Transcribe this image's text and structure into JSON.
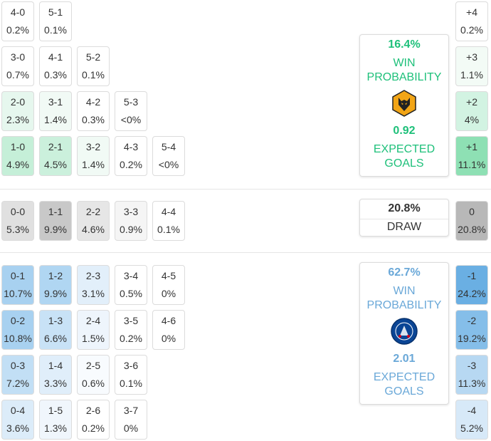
{
  "home_rows": [
    [
      {
        "score": "4-0",
        "prob": "0.2%",
        "bg": "#ffffff"
      },
      {
        "score": "5-1",
        "prob": "0.1%",
        "bg": "#ffffff"
      }
    ],
    [
      {
        "score": "3-0",
        "prob": "0.7%",
        "bg": "#ffffff"
      },
      {
        "score": "4-1",
        "prob": "0.3%",
        "bg": "#ffffff"
      },
      {
        "score": "5-2",
        "prob": "0.1%",
        "bg": "#ffffff"
      }
    ],
    [
      {
        "score": "2-0",
        "prob": "2.3%",
        "bg": "#e6f7ee"
      },
      {
        "score": "3-1",
        "prob": "1.4%",
        "bg": "#f1faf5"
      },
      {
        "score": "4-2",
        "prob": "0.3%",
        "bg": "#ffffff"
      },
      {
        "score": "5-3",
        "prob": "<0%",
        "bg": "#ffffff"
      }
    ],
    [
      {
        "score": "1-0",
        "prob": "4.9%",
        "bg": "#c5efd8"
      },
      {
        "score": "2-1",
        "prob": "4.5%",
        "bg": "#cbf0dc"
      },
      {
        "score": "3-2",
        "prob": "1.4%",
        "bg": "#f1faf5"
      },
      {
        "score": "4-3",
        "prob": "0.2%",
        "bg": "#ffffff"
      },
      {
        "score": "5-4",
        "prob": "<0%",
        "bg": "#ffffff"
      }
    ]
  ],
  "draw_row": [
    {
      "score": "0-0",
      "prob": "5.3%",
      "bg": "#e0e0e0"
    },
    {
      "score": "1-1",
      "prob": "9.9%",
      "bg": "#c8c8c8"
    },
    {
      "score": "2-2",
      "prob": "4.6%",
      "bg": "#e6e6e6"
    },
    {
      "score": "3-3",
      "prob": "0.9%",
      "bg": "#f5f5f5"
    },
    {
      "score": "4-4",
      "prob": "0.1%",
      "bg": "#ffffff"
    }
  ],
  "away_rows": [
    [
      {
        "score": "0-1",
        "prob": "10.7%",
        "bg": "#a8d1f0"
      },
      {
        "score": "1-2",
        "prob": "9.9%",
        "bg": "#b0d6f2"
      },
      {
        "score": "2-3",
        "prob": "3.1%",
        "bg": "#e2effa"
      },
      {
        "score": "3-4",
        "prob": "0.5%",
        "bg": "#ffffff"
      },
      {
        "score": "4-5",
        "prob": "0%",
        "bg": "#ffffff"
      }
    ],
    [
      {
        "score": "0-2",
        "prob": "10.8%",
        "bg": "#a8d1f0"
      },
      {
        "score": "1-3",
        "prob": "6.6%",
        "bg": "#c8e2f6"
      },
      {
        "score": "2-4",
        "prob": "1.5%",
        "bg": "#eef5fc"
      },
      {
        "score": "3-5",
        "prob": "0.2%",
        "bg": "#ffffff"
      },
      {
        "score": "4-6",
        "prob": "0%",
        "bg": "#ffffff"
      }
    ],
    [
      {
        "score": "0-3",
        "prob": "7.2%",
        "bg": "#c2dff5"
      },
      {
        "score": "1-4",
        "prob": "3.3%",
        "bg": "#e0eefa"
      },
      {
        "score": "2-5",
        "prob": "0.6%",
        "bg": "#f8fbfe"
      },
      {
        "score": "3-6",
        "prob": "0.1%",
        "bg": "#ffffff"
      }
    ],
    [
      {
        "score": "0-4",
        "prob": "3.6%",
        "bg": "#dcecf9"
      },
      {
        "score": "1-5",
        "prob": "1.3%",
        "bg": "#f0f6fc"
      },
      {
        "score": "2-6",
        "prob": "0.2%",
        "bg": "#ffffff"
      },
      {
        "score": "3-7",
        "prob": "0%",
        "bg": "#ffffff"
      }
    ]
  ],
  "margins": [
    {
      "label": "+4",
      "prob": "0.2%",
      "bg": "#ffffff"
    },
    {
      "label": "+3",
      "prob": "1.1%",
      "bg": "#f3fbf6"
    },
    {
      "label": "+2",
      "prob": "4%",
      "bg": "#d2f3e2"
    },
    {
      "label": "+1",
      "prob": "11.1%",
      "bg": "#8ee0b4"
    },
    {
      "label": "0",
      "prob": "20.8%",
      "bg": "#b8b8b8"
    },
    {
      "label": "-1",
      "prob": "24.2%",
      "bg": "#6aafe3"
    },
    {
      "label": "-2",
      "prob": "19.2%",
      "bg": "#85bee9"
    },
    {
      "label": "-3",
      "prob": "11.3%",
      "bg": "#b7d8f2"
    },
    {
      "label": "-4",
      "prob": "5.2%",
      "bg": "#d7e9f8"
    }
  ],
  "home_panel": {
    "win_pct": "16.4%",
    "win_label_1": "WIN",
    "win_label_2": "PROBABILITY",
    "xg": "0.92",
    "xg_label_1": "EXPECTED",
    "xg_label_2": "GOALS",
    "color": "#1ec07a",
    "crest_icon": "wolves-crest-icon"
  },
  "draw_panel": {
    "pct": "20.8%",
    "label": "DRAW"
  },
  "away_panel": {
    "win_pct": "62.7%",
    "win_label_1": "WIN",
    "win_label_2": "PROBABILITY",
    "xg": "2.01",
    "xg_label_1": "EXPECTED",
    "xg_label_2": "GOALS",
    "color": "#6aa8d8",
    "crest_icon": "chelsea-crest-icon"
  }
}
